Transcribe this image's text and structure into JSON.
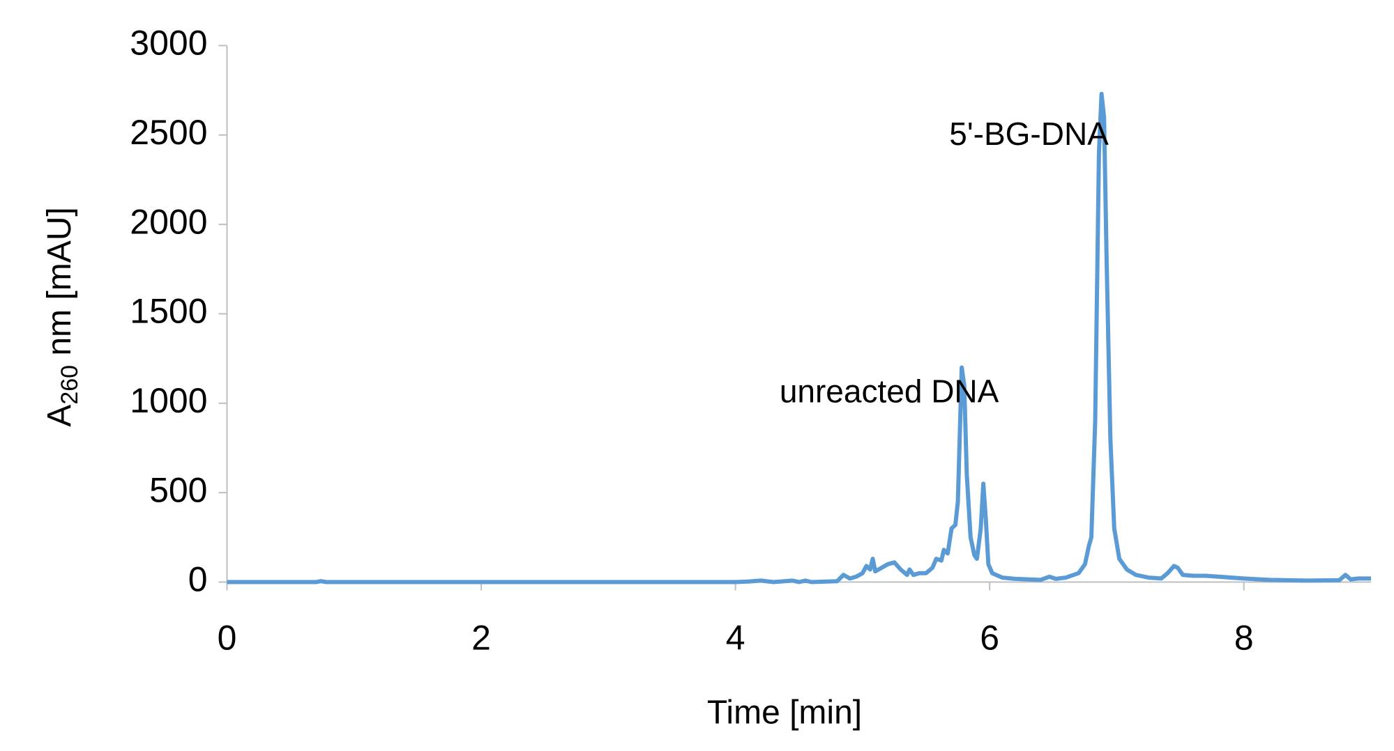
{
  "chart_data": {
    "type": "line",
    "xlabel": "Time [min]",
    "ylabel": [
      "A",
      "260",
      " nm [mAU]"
    ],
    "annotations": [
      {
        "text": "5'-BG-DNA",
        "x": 6.88,
        "y": 2500
      },
      {
        "text": "unreacted DNA",
        "x": 5.78,
        "y": 1060
      }
    ],
    "xlim": [
      0,
      9
    ],
    "xticks": [
      0,
      2,
      4,
      6,
      8
    ],
    "ylim": [
      0,
      3000
    ],
    "yticks": [
      0,
      500,
      1000,
      1500,
      2000,
      2500,
      3000
    ],
    "grid": false,
    "series": [
      {
        "color": "#5b9bd5",
        "x": [
          0,
          0.7,
          0.74,
          0.78,
          2,
          4,
          4.1,
          4.2,
          4.3,
          4.45,
          4.5,
          4.55,
          4.6,
          4.8,
          4.85,
          4.9,
          4.95,
          5.0,
          5.03,
          5.06,
          5.08,
          5.1,
          5.15,
          5.2,
          5.25,
          5.3,
          5.35,
          5.37,
          5.4,
          5.45,
          5.5,
          5.55,
          5.58,
          5.62,
          5.64,
          5.67,
          5.7,
          5.73,
          5.75,
          5.78,
          5.8,
          5.82,
          5.85,
          5.88,
          5.9,
          5.93,
          5.95,
          5.97,
          5.99,
          6.02,
          6.1,
          6.2,
          6.3,
          6.4,
          6.47,
          6.52,
          6.6,
          6.7,
          6.75,
          6.78,
          6.8,
          6.83,
          6.86,
          6.88,
          6.9,
          6.92,
          6.95,
          6.98,
          7.02,
          7.08,
          7.15,
          7.25,
          7.35,
          7.4,
          7.45,
          7.48,
          7.52,
          7.6,
          7.7,
          7.8,
          8.0,
          8.2,
          8.5,
          8.75,
          8.8,
          8.84,
          8.9,
          9.0
        ],
        "values": [
          0,
          0,
          5,
          0,
          0,
          0,
          3,
          8,
          0,
          8,
          0,
          8,
          0,
          5,
          40,
          20,
          30,
          50,
          90,
          70,
          130,
          60,
          80,
          100,
          110,
          70,
          40,
          70,
          40,
          50,
          50,
          80,
          130,
          120,
          180,
          160,
          300,
          320,
          450,
          1200,
          1100,
          600,
          250,
          150,
          130,
          300,
          550,
          350,
          100,
          50,
          25,
          18,
          15,
          12,
          30,
          18,
          25,
          50,
          100,
          200,
          250,
          900,
          2400,
          2730,
          2600,
          1800,
          800,
          300,
          130,
          70,
          40,
          25,
          20,
          50,
          90,
          80,
          40,
          35,
          35,
          30,
          20,
          12,
          8,
          10,
          40,
          15,
          20,
          20
        ]
      }
    ]
  }
}
